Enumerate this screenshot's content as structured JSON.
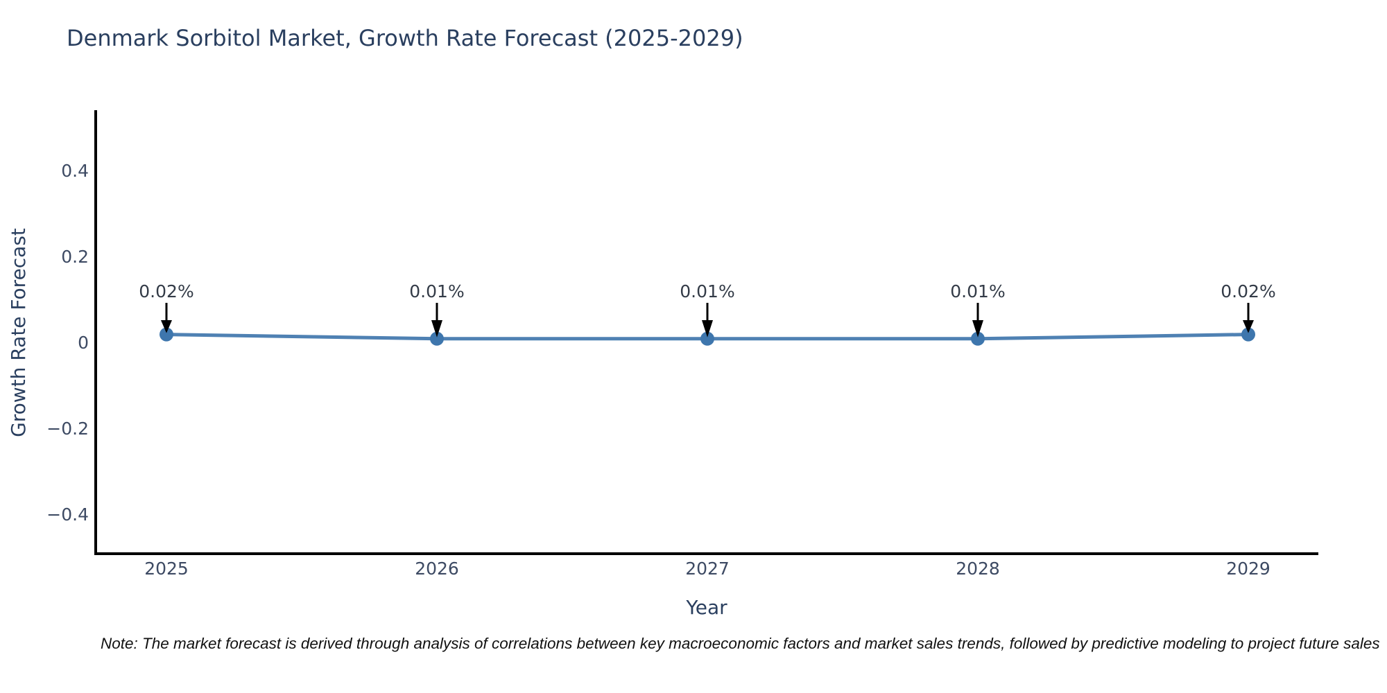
{
  "title": "Denmark Sorbitol Market, Growth Rate Forecast (2025-2029)",
  "note": "Note: The market forecast is derived through analysis of correlations between key macroeconomic factors and market sales trends, followed by predictive modeling to project future sales",
  "chart_data": {
    "type": "line",
    "title": "Denmark Sorbitol Market, Growth Rate Forecast (2025-2029)",
    "xlabel": "Year",
    "ylabel": "Growth Rate Forecast",
    "x": [
      2025,
      2026,
      2027,
      2028,
      2029
    ],
    "series": [
      {
        "name": "Growth Rate Forecast",
        "values": [
          0.02,
          0.01,
          0.01,
          0.01,
          0.02
        ]
      }
    ],
    "point_labels": [
      "0.02%",
      "0.01%",
      "0.01%",
      "0.01%",
      "0.02%"
    ],
    "xticks": [
      "2025",
      "2026",
      "2027",
      "2028",
      "2029"
    ],
    "yticks": [
      {
        "label": "0.4",
        "value": 0.4
      },
      {
        "label": "0.2",
        "value": 0.2
      },
      {
        "label": "0",
        "value": 0
      },
      {
        "label": "−0.2",
        "value": -0.2
      },
      {
        "label": "−0.4",
        "value": -0.4
      }
    ],
    "ylim": [
      -0.49,
      0.54
    ],
    "xlim": [
      2024.74,
      2029.26
    ],
    "grid": false,
    "legend_position": "none",
    "colors": {
      "line": "#4f81b3",
      "marker": "#3e76ad",
      "arrow": "#000000",
      "axis": "#000000",
      "title_text": "#2a3f5f",
      "axis_title_text": "#2a3f5f",
      "tick_text": "#3d4a63",
      "annotation_text": "#333b47",
      "note_text": "#111111"
    }
  }
}
